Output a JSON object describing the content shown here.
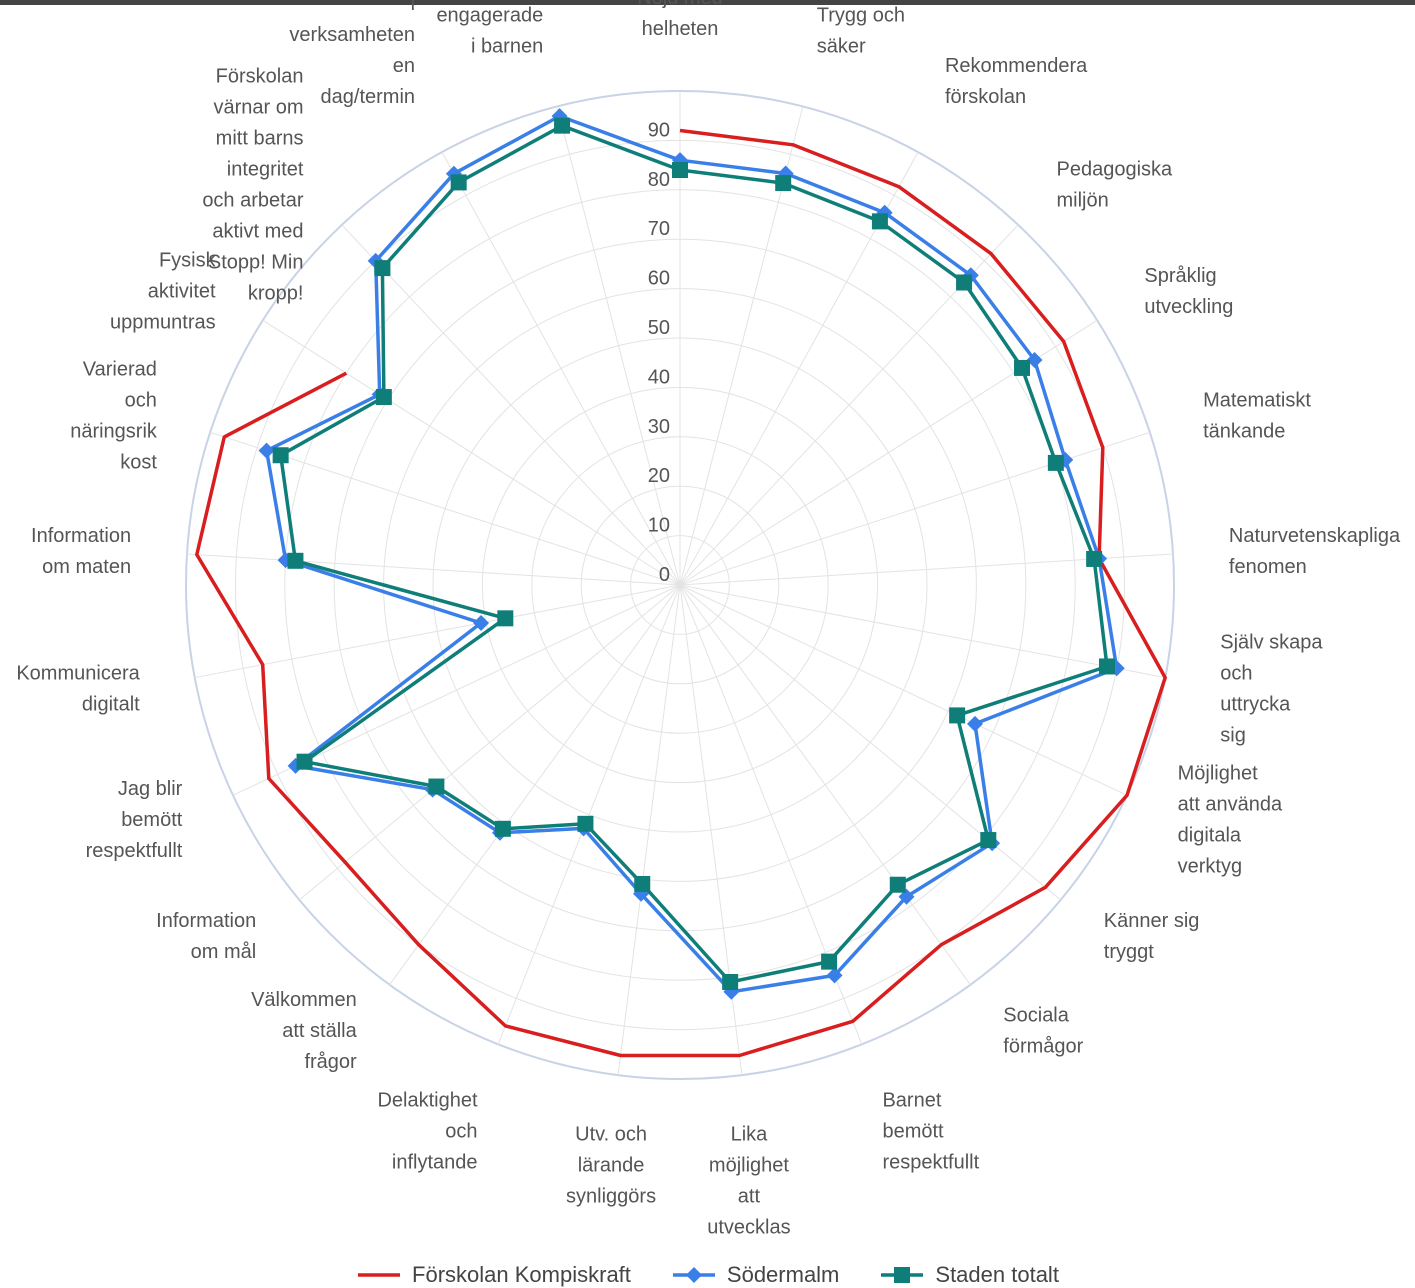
{
  "chart_data": {
    "type": "radar",
    "title": "",
    "rmax": 100,
    "ticks": [
      0,
      10,
      20,
      30,
      40,
      50,
      60,
      70,
      80,
      90
    ],
    "categories": [
      "Nöjd med helheten",
      "Trygg och säker",
      "Rekommendera förskolan",
      "Pedagogiska miljön",
      "Språklig utveckling",
      "Matematiskt tänkande",
      "Naturvetenskapliga fenomen",
      "Själv skapa och uttrycka sig",
      "Möjlighet att använda digitala verktyg",
      "Känner sig tryggt",
      "Sociala förmågor",
      "Barnet bemött respektfullt",
      "Lika möjlighet att utvecklas",
      "Utv. och lärande synliggörs",
      "Delaktighet och inflytande",
      "Välkommen att ställa frågor",
      "Information om mål",
      "Jag blir bemött respektfullt",
      "Kommunicera digitalt",
      "Information om maten",
      "Varierad och näringsrik kost",
      "Fysisk aktivitet uppmuntras",
      "Förskolan värnar om mitt barns integritet och arbetar aktivt med Stopp! Min kropp!",
      "Förskolan uppmärksammar mitt barns inflytande i verksamheten en dag/termin",
      "Förskolans pedagoger är engagerade i barnen"
    ],
    "series": [
      {
        "name": "Förskolan Kompiskraft",
        "color": "#d81e1e",
        "marker": "none",
        "values": [
          92,
          92,
          92,
          92,
          92,
          90,
          85,
          100,
          100,
          96,
          90,
          95,
          96,
          96,
          96,
          90,
          88,
          92,
          86,
          98,
          97,
          80,
          null,
          null,
          null
        ]
      },
      {
        "name": "Södermalm",
        "color": "#3a7fe8",
        "marker": "diamond",
        "values": [
          86,
          86,
          86,
          86,
          85,
          82,
          85,
          90,
          66,
          82,
          78,
          85,
          83,
          63,
          53,
          62,
          65,
          86,
          41,
          80,
          88,
          72,
          90,
          95,
          98
        ]
      },
      {
        "name": "Staden totalt",
        "color": "#0f7e78",
        "marker": "square",
        "values": [
          84,
          84,
          84,
          84,
          82,
          80,
          84,
          88,
          62,
          81,
          75,
          82,
          81,
          61,
          52,
          61,
          64,
          84,
          36,
          78,
          85,
          71,
          88,
          93,
          96
        ]
      }
    ],
    "legend_position": "bottom"
  }
}
